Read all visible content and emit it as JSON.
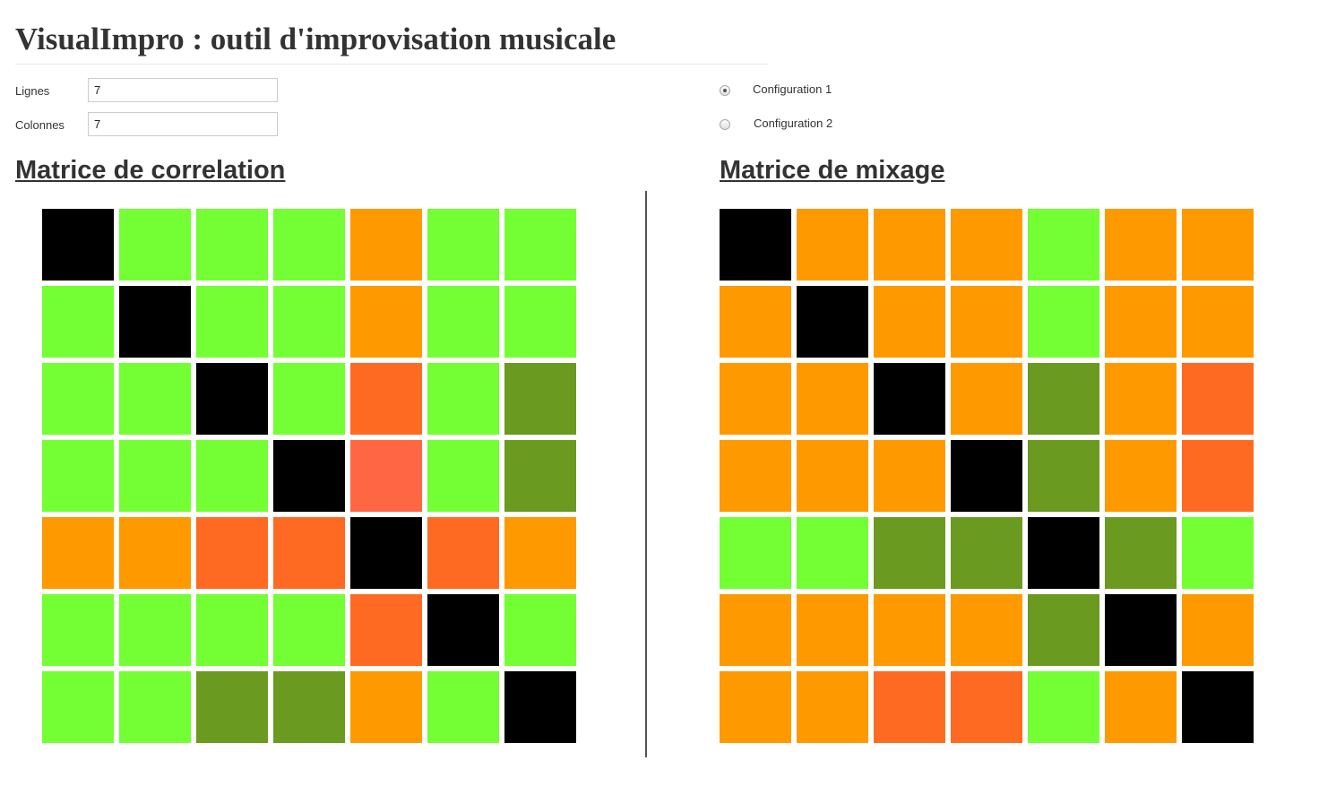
{
  "title": "VisualImpro : outil d'improvisation musicale",
  "form": {
    "rows_label": "Lignes",
    "rows_value": "7",
    "cols_label": "Colonnes",
    "cols_value": "7"
  },
  "config": {
    "selected": 1,
    "options": [
      {
        "label": "Configuration 1"
      },
      {
        "label": "Configuration 2"
      }
    ]
  },
  "colors": {
    "K": "#000000",
    "G": "#73ff33",
    "D": "#6a9a1f",
    "O": "#ff9900",
    "R": "#ff6a22",
    "S": "#ff6644"
  },
  "correlation": {
    "heading": "Matrice de correlation",
    "grid": [
      [
        "K",
        "G",
        "G",
        "G",
        "O",
        "G",
        "G"
      ],
      [
        "G",
        "K",
        "G",
        "G",
        "O",
        "G",
        "G"
      ],
      [
        "G",
        "G",
        "K",
        "G",
        "R",
        "G",
        "D"
      ],
      [
        "G",
        "G",
        "G",
        "K",
        "S",
        "G",
        "D"
      ],
      [
        "O",
        "O",
        "R",
        "R",
        "K",
        "R",
        "O"
      ],
      [
        "G",
        "G",
        "G",
        "G",
        "R",
        "K",
        "G"
      ],
      [
        "G",
        "G",
        "D",
        "D",
        "O",
        "G",
        "K"
      ]
    ]
  },
  "mixage": {
    "heading": "Matrice de mixage",
    "grid": [
      [
        "K",
        "O",
        "O",
        "O",
        "G",
        "O",
        "O"
      ],
      [
        "O",
        "K",
        "O",
        "O",
        "G",
        "O",
        "O"
      ],
      [
        "O",
        "O",
        "K",
        "O",
        "D",
        "O",
        "R"
      ],
      [
        "O",
        "O",
        "O",
        "K",
        "D",
        "O",
        "R"
      ],
      [
        "G",
        "G",
        "D",
        "D",
        "K",
        "D",
        "G"
      ],
      [
        "O",
        "O",
        "O",
        "O",
        "D",
        "K",
        "O"
      ],
      [
        "O",
        "O",
        "R",
        "R",
        "G",
        "O",
        "K"
      ]
    ]
  }
}
